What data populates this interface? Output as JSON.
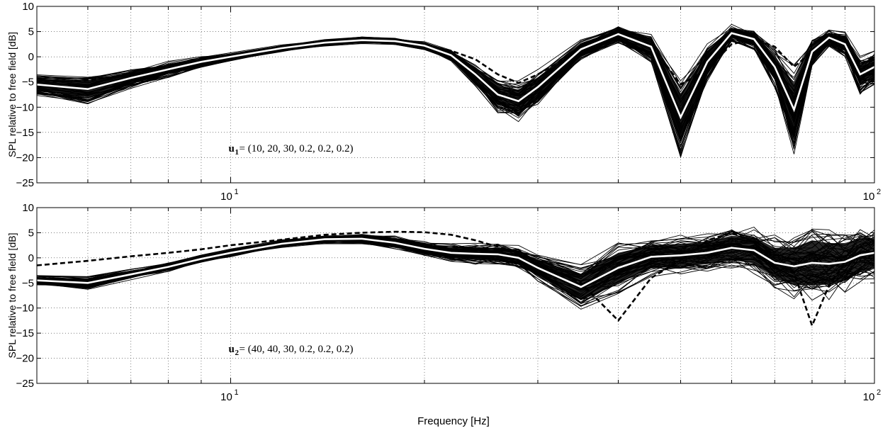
{
  "chart_data": [
    {
      "type": "line",
      "ylabel": "SPL relative to free field [dB]",
      "xlabel": "",
      "x_scale": "log",
      "xlim": [
        5,
        100
      ],
      "ylim": [
        -25,
        10
      ],
      "yticks": [
        10,
        5,
        0,
        -5,
        -10,
        -15,
        -20,
        -25
      ],
      "yticklabels": [
        "10",
        "5",
        "0",
        "−5",
        "−10",
        "−15",
        "−20",
        "−25"
      ],
      "xtick_labels": [
        {
          "base": "10",
          "exp": "1",
          "value": 10
        },
        {
          "base": "10",
          "exp": "2",
          "value": 100
        }
      ],
      "grid": true,
      "annotation": {
        "var": "u",
        "sub": "1",
        "text": " = (10, 20, 30, 0.2, 0.2, 0.2)",
        "x": 10,
        "y": -18.8
      },
      "x": [
        5,
        6,
        7,
        8,
        9,
        10,
        12,
        14,
        16,
        18,
        20,
        22,
        24,
        26,
        28,
        30,
        35,
        40,
        45,
        50,
        55,
        60,
        65,
        70,
        75,
        80,
        85,
        90,
        95,
        100
      ],
      "mean": [
        -5.5,
        -6.4,
        -4.2,
        -2.5,
        -1.0,
        0.0,
        1.7,
        2.8,
        3.3,
        3.1,
        2.2,
        0.3,
        -3.5,
        -7.5,
        -8.8,
        -6.0,
        1.5,
        4.5,
        2.0,
        -12.0,
        -1.0,
        4.7,
        3.5,
        -2.0,
        -10.5,
        1.0,
        3.8,
        2.5,
        -3.5,
        -2.0
      ],
      "dashed": [
        -5.0,
        -4.7,
        -3.5,
        -2.0,
        -1.0,
        0.1,
        1.7,
        2.6,
        3.1,
        3.0,
        2.4,
        1.2,
        -0.5,
        -3.5,
        -5.2,
        -3.5,
        1.5,
        3.8,
        2.5,
        -5.5,
        -2.5,
        2.5,
        3.5,
        2.0,
        -2.0,
        1.0,
        3.0,
        2.5,
        -1.5,
        0.0
      ],
      "spread": [
        1.6,
        2.2,
        1.5,
        1.2,
        0.8,
        0.6,
        0.5,
        0.5,
        0.5,
        0.5,
        0.6,
        0.9,
        1.6,
        2.6,
        3.0,
        2.6,
        1.5,
        1.3,
        2.2,
        6.0,
        2.8,
        1.3,
        1.6,
        3.0,
        7.0,
        2.2,
        1.3,
        1.8,
        3.0,
        2.6
      ]
    },
    {
      "type": "line",
      "ylabel": "SPL relative to free field [dB]",
      "xlabel": "Frequency [Hz]",
      "x_scale": "log",
      "xlim": [
        5,
        100
      ],
      "ylim": [
        -25,
        10
      ],
      "yticks": [
        10,
        5,
        0,
        -5,
        -10,
        -15,
        -20,
        -25
      ],
      "yticklabels": [
        "10",
        "5",
        "0",
        "−5",
        "−10",
        "−15",
        "−20",
        "−25"
      ],
      "xtick_labels": [
        {
          "base": "10",
          "exp": "1",
          "value": 10
        },
        {
          "base": "10",
          "exp": "2",
          "value": 100
        }
      ],
      "grid": true,
      "annotation": {
        "var": "u",
        "sub": "2",
        "text": " = (40, 40, 30, 0.2, 0.2, 0.2)",
        "x": 10,
        "y": -18.8
      },
      "x": [
        5,
        6,
        7,
        8,
        9,
        10,
        12,
        14,
        16,
        18,
        20,
        22,
        24,
        26,
        28,
        30,
        35,
        40,
        45,
        50,
        55,
        60,
        65,
        70,
        75,
        80,
        85,
        90,
        95,
        100
      ],
      "mean": [
        -4.5,
        -5.0,
        -3.3,
        -1.8,
        -0.2,
        1.0,
        2.8,
        3.7,
        3.8,
        3.0,
        1.8,
        1.0,
        0.8,
        0.7,
        0.0,
        -2.0,
        -5.8,
        -2.0,
        0.2,
        0.5,
        1.0,
        2.0,
        1.5,
        -1.0,
        -1.7,
        -1.0,
        -1.2,
        -0.8,
        0.5,
        1.0
      ],
      "dashed": [
        -1.5,
        -0.6,
        0.3,
        1.0,
        1.7,
        2.5,
        3.6,
        4.6,
        5.0,
        5.2,
        5.1,
        4.6,
        3.5,
        2.2,
        0.9,
        -1.0,
        -5.0,
        -12.5,
        -4.0,
        -0.5,
        3.5,
        5.0,
        3.0,
        -1.0,
        -3.0,
        -13.5,
        -5.5,
        -1.0,
        0.0,
        0.5
      ],
      "spread": [
        0.8,
        1.0,
        0.8,
        0.7,
        0.6,
        0.6,
        0.6,
        0.7,
        0.8,
        1.0,
        1.2,
        1.4,
        1.6,
        1.7,
        1.8,
        2.0,
        3.5,
        4.0,
        3.0,
        3.0,
        3.0,
        3.2,
        3.5,
        4.0,
        5.0,
        6.0,
        5.5,
        5.0,
        4.5,
        4.0
      ]
    }
  ]
}
